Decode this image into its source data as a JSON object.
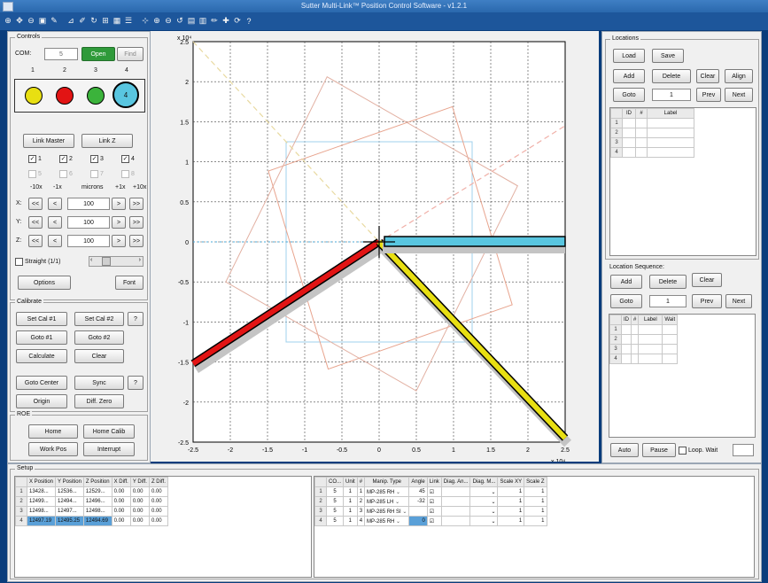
{
  "window": {
    "title": "Sutter Multi-Link™ Position Control Software - v1.2.1"
  },
  "toolbar": {
    "icons": [
      "zoom-in-icon",
      "pan-icon",
      "zoom-out-icon",
      "zoom-box-icon",
      "pen-icon",
      "ruler-icon",
      "brush-icon",
      "rotate-icon",
      "insert-icon",
      "grid-icon",
      "legend-icon",
      "datacursor-icon",
      "zoom-icon",
      "zoom2-icon",
      "rotate3d-icon",
      "table-icon",
      "colorbar-icon",
      "edit-icon",
      "cross-icon",
      "refresh-icon",
      "help-icon"
    ]
  },
  "controls": {
    "label": "Controls",
    "com_label": "COM:",
    "com_value": "5",
    "open": "Open",
    "find": "Find",
    "devices": [
      {
        "num": "1",
        "color": "#e8df12",
        "label": ""
      },
      {
        "num": "2",
        "color": "#e21414",
        "label": ""
      },
      {
        "num": "3",
        "color": "#3bb33b",
        "label": ""
      },
      {
        "num": "4",
        "color": "#59c6e0",
        "label": "4"
      }
    ],
    "link_master": "Link Master",
    "link_z": "Link Z",
    "checks_on": [
      {
        "label": "1"
      },
      {
        "label": "2"
      },
      {
        "label": "3"
      },
      {
        "label": "4"
      }
    ],
    "checks_off": [
      {
        "label": "5"
      },
      {
        "label": "6"
      },
      {
        "label": "7"
      },
      {
        "label": "8"
      }
    ],
    "steps": [
      "-10x",
      "-1x",
      "microns",
      "+1x",
      "+10x"
    ],
    "axes": [
      {
        "label": "X:",
        "value": "100"
      },
      {
        "label": "Y:",
        "value": "100"
      },
      {
        "label": "Z:",
        "value": "100"
      }
    ],
    "btn_ll": "<<",
    "btn_l": "<",
    "btn_r": ">",
    "btn_rr": ">>",
    "straight": "Straight (1/1)",
    "options": "Options",
    "font": "Font"
  },
  "calibrate": {
    "label": "Calibrate",
    "set_cal1": "Set Cal #1",
    "set_cal2": "Set Cal #2",
    "help": "?",
    "goto1": "Goto #1",
    "goto2": "Goto #2",
    "calculate": "Calculate",
    "clear": "Clear",
    "goto_center": "Goto Center",
    "sync": "Sync",
    "help2": "?",
    "origin": "Origin",
    "diff_zero": "Diff. Zero"
  },
  "roe": {
    "label": "ROE",
    "home": "Home",
    "home_calib": "Home Calib",
    "work_pos": "Work Pos",
    "interrupt": "Interrupt"
  },
  "plot": {
    "x_exp": "x 10⁴",
    "y_exp": "x 10⁴",
    "x_ticks": [
      "-2.5",
      "-2",
      "-1.5",
      "-1",
      "-0.5",
      "0",
      "0.5",
      "1",
      "1.5",
      "2",
      "2.5"
    ],
    "y_ticks": [
      "2.5",
      "2",
      "1.5",
      "1",
      "0.5",
      "0",
      "-0.5",
      "-1",
      "-1.5",
      "-2",
      "-2.5"
    ]
  },
  "locations": {
    "label": "Locations",
    "load": "Load",
    "save": "Save",
    "add": "Add",
    "delete": "Delete",
    "clear": "Clear",
    "align": "Align",
    "goto": "Goto",
    "goto_value": "1",
    "prev": "Prev",
    "next": "Next",
    "columns": [
      "ID",
      "#",
      "Label"
    ],
    "rows": [
      "1",
      "2",
      "3",
      "4"
    ]
  },
  "sequence": {
    "label": "Location Sequence:",
    "add": "Add",
    "delete": "Delete",
    "clear": "Clear",
    "goto": "Goto",
    "goto_value": "1",
    "prev": "Prev",
    "next": "Next",
    "columns": [
      "ID",
      "#",
      "Label",
      "Wait"
    ],
    "rows": [
      "1",
      "2",
      "3",
      "4"
    ],
    "auto": "Auto",
    "pause": "Pause",
    "loop_wait": "Loop. Wait"
  },
  "setup": {
    "label": "Setup",
    "pos_columns": [
      "X Position",
      "Y Position",
      "Z Position",
      "X Diff.",
      "Y Diff.",
      "Z Diff."
    ],
    "pos_rows": [
      {
        "n": "1",
        "cells": [
          "13428...",
          "12536...",
          "12529...",
          "0.00",
          "0.00",
          "0.00"
        ]
      },
      {
        "n": "2",
        "cells": [
          "12499...",
          "12494...",
          "12496...",
          "0.00",
          "0.00",
          "0.00"
        ]
      },
      {
        "n": "3",
        "cells": [
          "12498...",
          "12497...",
          "12498...",
          "0.00",
          "0.00",
          "0.00"
        ]
      },
      {
        "n": "4",
        "cells": [
          "12497.19",
          "12495.25",
          "12494.69",
          "0.00",
          "0.00",
          "0.00"
        ]
      }
    ],
    "dev_columns": [
      "CO...",
      "Unit",
      "#",
      "Manip. Type",
      "Angle",
      "Link",
      "Diag. An...",
      "Diag. M...",
      "Scale XY",
      "Scale Z"
    ],
    "dev_rows": [
      {
        "n": "1",
        "com": "5",
        "unit": "1",
        "num": "1",
        "type": "MP-285 RH",
        "angle": "45",
        "sxy": "1",
        "sz": "1"
      },
      {
        "n": "2",
        "com": "5",
        "unit": "1",
        "num": "2",
        "type": "MP-285 LH",
        "angle": "-32",
        "sxy": "1",
        "sz": "1"
      },
      {
        "n": "3",
        "com": "5",
        "unit": "1",
        "num": "3",
        "type": "MP-285 RH SI",
        "angle": "",
        "sxy": "1",
        "sz": "1"
      },
      {
        "n": "4",
        "com": "5",
        "unit": "1",
        "num": "4",
        "type": "MP-285 RH",
        "angle": "0",
        "sxy": "1",
        "sz": "1"
      }
    ]
  }
}
